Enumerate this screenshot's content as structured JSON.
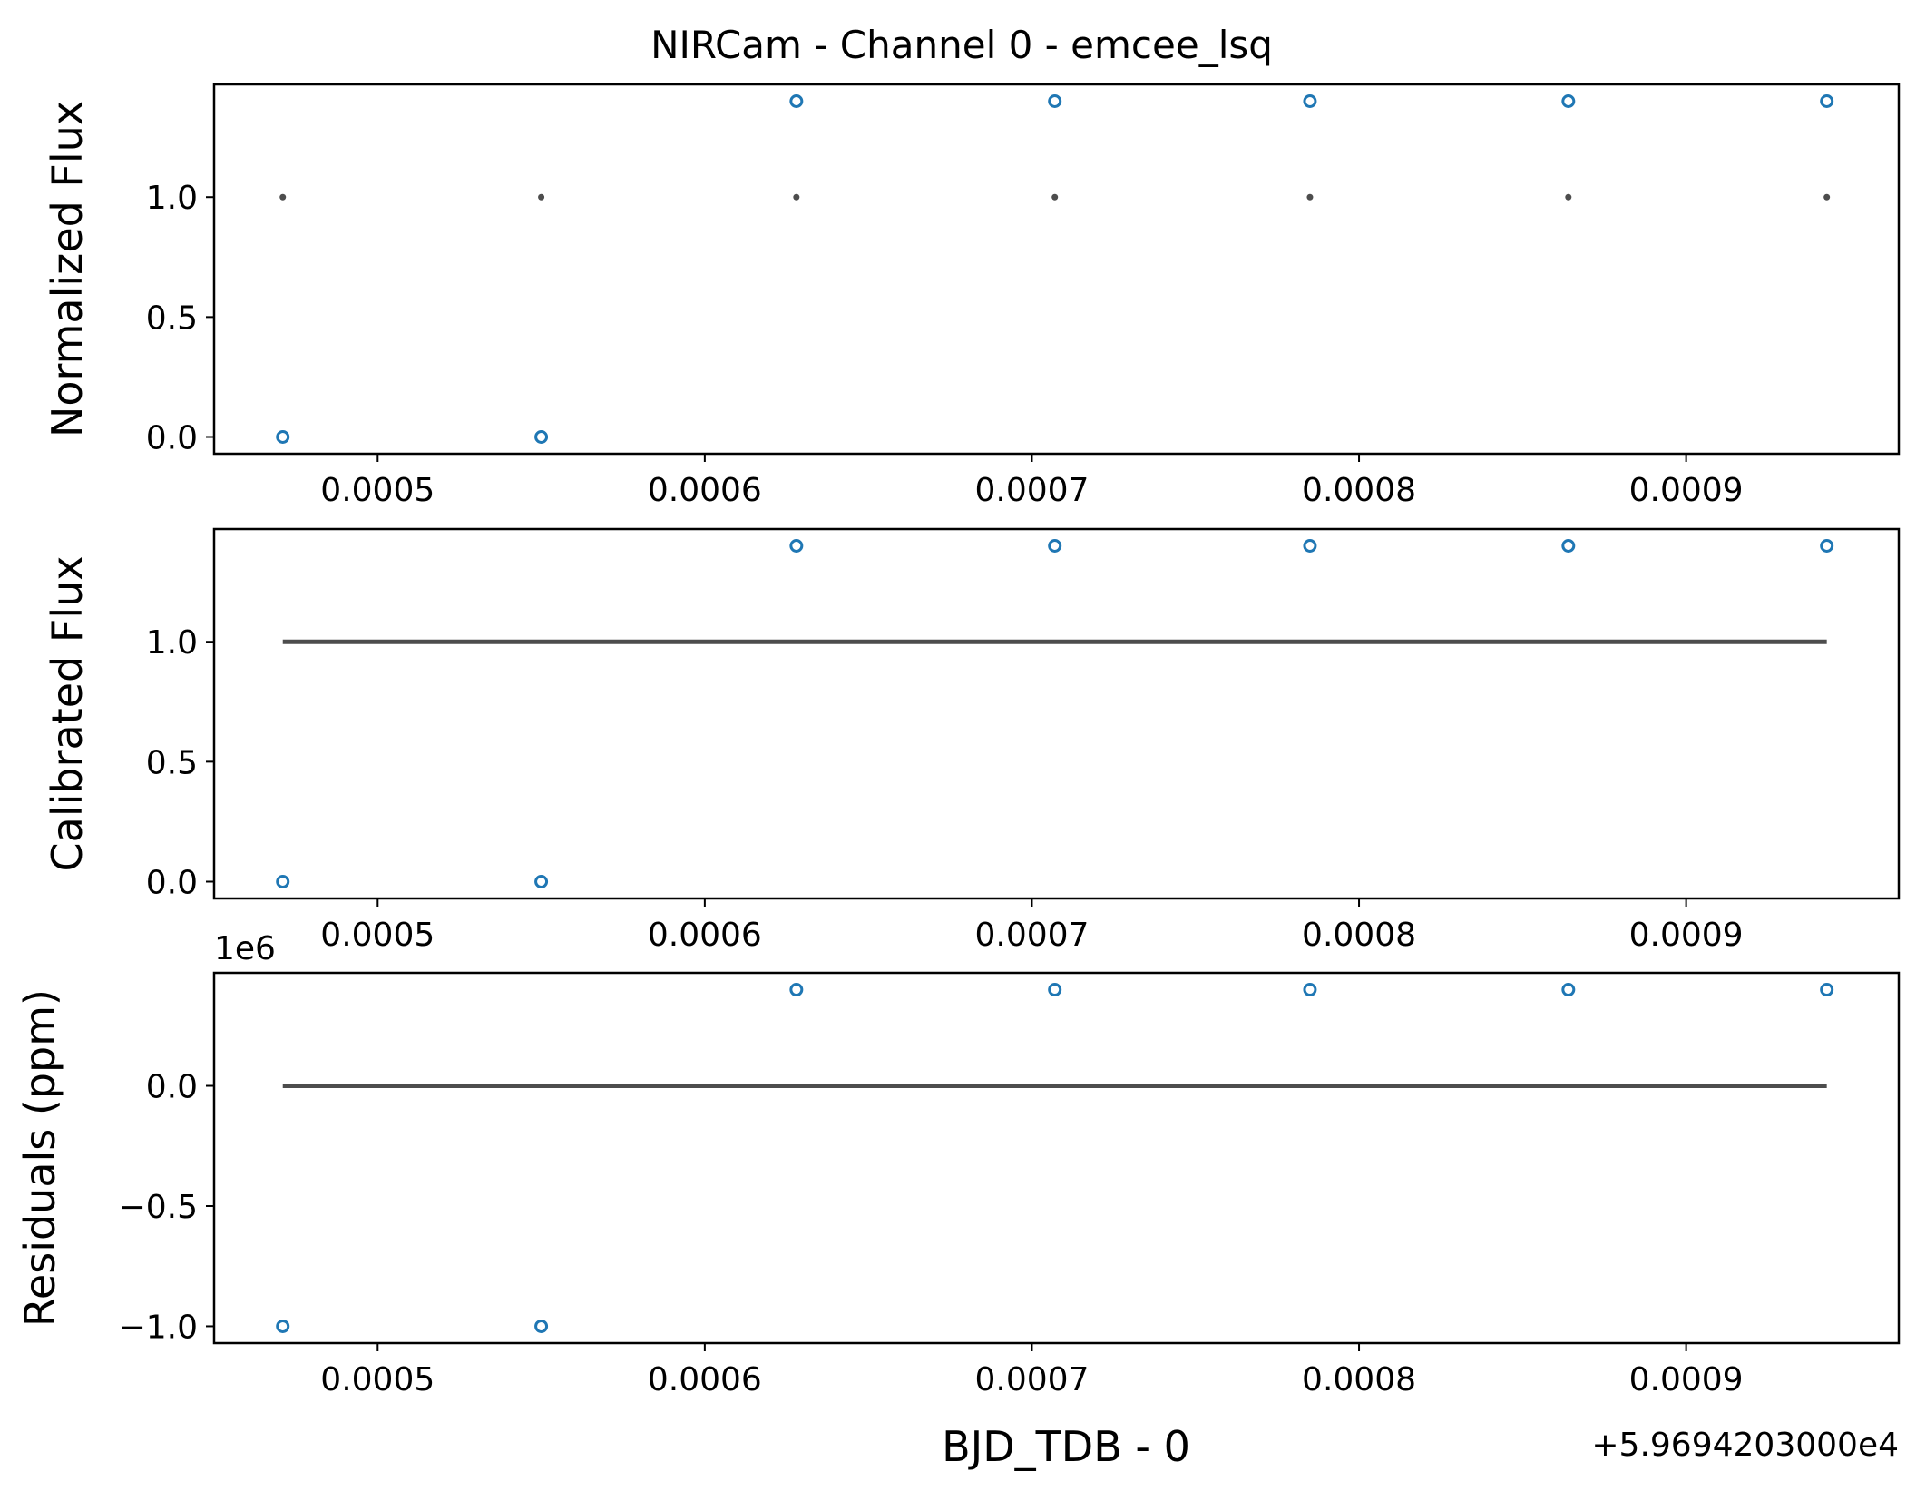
{
  "chart_data": [
    {
      "type": "scatter",
      "title": "NIRCam - Channel 0 - emcee_lsq",
      "ylabel": "Normalized Flux",
      "xlabel": "",
      "xlim": [
        0.00045,
        0.000965
      ],
      "ylim": [
        -0.07,
        1.47
      ],
      "xticks": [
        0.0005,
        0.0006,
        0.0007,
        0.0008,
        0.0009
      ],
      "xtick_labels": [
        "0.0005",
        "0.0006",
        "0.0007",
        "0.0008",
        "0.0009"
      ],
      "yticks": [
        0.0,
        0.5,
        1.0
      ],
      "ytick_labels": [
        "0.0",
        "0.5",
        "1.0"
      ],
      "x": [
        0.000471,
        0.00055,
        0.000628,
        0.000707,
        0.000785,
        0.000864,
        0.000943
      ],
      "series": [
        {
          "style": "open-circle",
          "color": "#1f77b4",
          "values": [
            0,
            0,
            1.4,
            1.4,
            1.4,
            1.4,
            1.4
          ]
        },
        {
          "style": "dot",
          "color": "#4d4d4d",
          "values": [
            1,
            1,
            1,
            1,
            1,
            1,
            1
          ]
        }
      ]
    },
    {
      "type": "scatter",
      "ylabel": "Calibrated Flux",
      "xlabel": "",
      "xlim": [
        0.00045,
        0.000965
      ],
      "ylim": [
        -0.07,
        1.47
      ],
      "xticks": [
        0.0005,
        0.0006,
        0.0007,
        0.0008,
        0.0009
      ],
      "xtick_labels": [
        "0.0005",
        "0.0006",
        "0.0007",
        "0.0008",
        "0.0009"
      ],
      "yticks": [
        0.0,
        0.5,
        1.0
      ],
      "ytick_labels": [
        "0.0",
        "0.5",
        "1.0"
      ],
      "x": [
        0.000471,
        0.00055,
        0.000628,
        0.000707,
        0.000785,
        0.000864,
        0.000943
      ],
      "series": [
        {
          "style": "open-circle",
          "color": "#1f77b4",
          "values": [
            0,
            0,
            1.4,
            1.4,
            1.4,
            1.4,
            1.4
          ]
        },
        {
          "style": "line",
          "color": "#4d4d4d",
          "values": [
            1,
            1,
            1,
            1,
            1,
            1,
            1
          ]
        }
      ]
    },
    {
      "type": "scatter",
      "ylabel": "Residuals (ppm)",
      "xlabel": "BJD_TDB - 0",
      "y_scale_label": "1e6",
      "x_offset_label": "+5.9694203000e4",
      "xlim": [
        0.00045,
        0.000965
      ],
      "ylim": [
        -1.07,
        0.47
      ],
      "xticks": [
        0.0005,
        0.0006,
        0.0007,
        0.0008,
        0.0009
      ],
      "xtick_labels": [
        "0.0005",
        "0.0006",
        "0.0007",
        "0.0008",
        "0.0009"
      ],
      "yticks": [
        -1.0,
        -0.5,
        0.0
      ],
      "ytick_labels": [
        "−1.0",
        "−0.5",
        "0.0"
      ],
      "x": [
        0.000471,
        0.00055,
        0.000628,
        0.000707,
        0.000785,
        0.000864,
        0.000943
      ],
      "series": [
        {
          "style": "open-circle",
          "color": "#1f77b4",
          "values": [
            -1,
            -1,
            0.4,
            0.4,
            0.4,
            0.4,
            0.4
          ]
        },
        {
          "style": "line",
          "color": "#4d4d4d",
          "values": [
            0,
            0,
            0,
            0,
            0,
            0,
            0
          ]
        }
      ]
    }
  ]
}
